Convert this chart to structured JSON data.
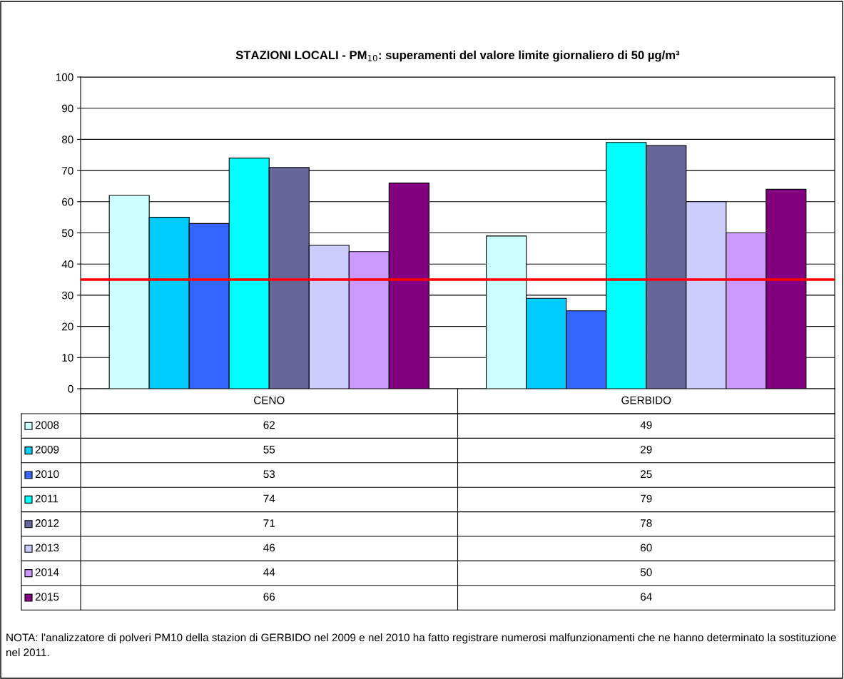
{
  "chart_data": {
    "type": "bar",
    "title": "STAZIONI LOCALI - PM$_{10}$: superamenti del valore limite giornaliero di 50 µg/m³",
    "categories": [
      "CENO",
      "GERBIDO"
    ],
    "series": [
      {
        "name": "2008",
        "color": "#ccffff",
        "values": [
          62,
          49
        ]
      },
      {
        "name": "2009",
        "color": "#00ccff",
        "values": [
          55,
          29
        ]
      },
      {
        "name": "2010",
        "color": "#3366ff",
        "values": [
          53,
          25
        ]
      },
      {
        "name": "2011",
        "color": "#00ffff",
        "values": [
          74,
          79
        ]
      },
      {
        "name": "2012",
        "color": "#666699",
        "values": [
          71,
          78
        ]
      },
      {
        "name": "2013",
        "color": "#ccccff",
        "values": [
          46,
          60
        ]
      },
      {
        "name": "2014",
        "color": "#cc99ff",
        "values": [
          44,
          50
        ]
      },
      {
        "name": "2015",
        "color": "#800080",
        "values": [
          66,
          64
        ]
      }
    ],
    "ylim": [
      0,
      100
    ],
    "yticks": [
      0,
      10,
      20,
      30,
      40,
      50,
      60,
      70,
      80,
      90,
      100
    ],
    "grid": "y",
    "data_labels": true,
    "legend": "bottom left",
    "ref_lines": [
      {
        "axis": "y",
        "value": 35,
        "color": "#ff0000"
      }
    ],
    "annotations": [
      "NOTA: l'analizzatore di polveri PM10 della stazion di GERBIDO nel 2009 e nel 2010 ha fatto registrare numerosi malfunzionamenti che ne hanno determinato la sostituzione nel 2011."
    ]
  }
}
